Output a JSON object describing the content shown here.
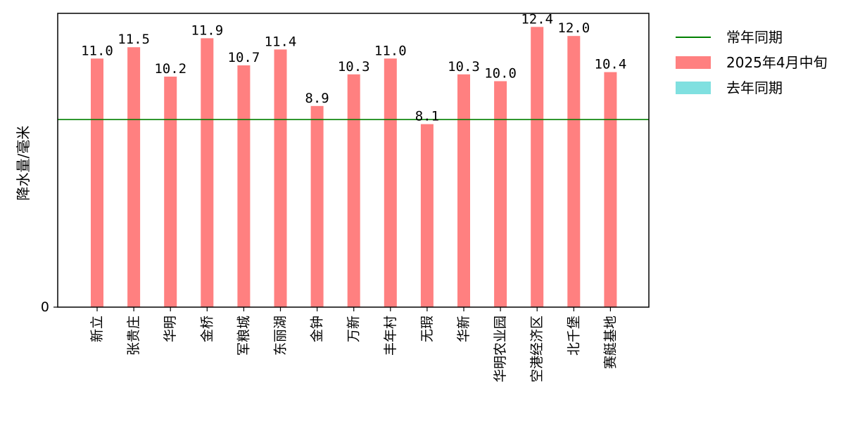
{
  "chart_data": {
    "type": "bar",
    "categories": [
      "新立",
      "张贵庄",
      "华明",
      "金桥",
      "军粮城",
      "东丽湖",
      "金钟",
      "万新",
      "丰年村",
      "无瑕",
      "华新",
      "华明农业园",
      "空港经济区",
      "北千堡",
      "赛艇基地"
    ],
    "series": [
      {
        "name": "2025年4月中旬",
        "values": [
          11.0,
          11.5,
          10.2,
          11.9,
          10.7,
          11.4,
          8.9,
          10.3,
          11.0,
          8.1,
          10.3,
          10.0,
          12.4,
          12.0,
          10.4
        ],
        "color": "#ff8080"
      },
      {
        "name": "去年同期",
        "values": [
          0,
          0,
          0,
          0,
          0,
          0,
          0,
          0,
          0,
          0,
          0,
          0,
          0,
          0,
          0
        ],
        "color": "#80e0e0"
      }
    ],
    "reference_line": {
      "name": "常年同期",
      "value": 8.3,
      "color": "#008000"
    },
    "data_labels": [
      "11.0",
      "11.5",
      "10.2",
      "11.9",
      "10.7",
      "11.4",
      "8.9",
      "10.3",
      "11.0",
      "8.1",
      "10.3",
      "10.0",
      "12.4",
      "12.0",
      "10.4"
    ],
    "ylabel": "降水量/毫米",
    "yticks": [
      "0"
    ],
    "ylim": [
      0,
      13.0
    ],
    "legend_position": "outside-right",
    "grid": false
  }
}
